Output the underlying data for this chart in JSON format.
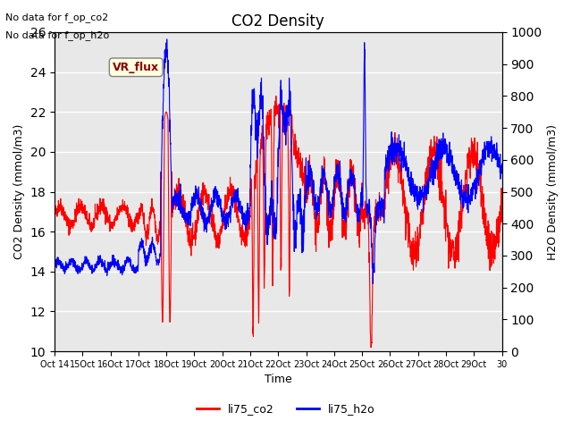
{
  "title": "CO2 Density",
  "xlabel": "Time",
  "ylabel_left": "CO2 Density (mmol/m3)",
  "ylabel_right": "H2O Density (mmol/m3)",
  "ylim_left": [
    10,
    26
  ],
  "ylim_right": [
    0,
    1000
  ],
  "yticks_left": [
    10,
    12,
    14,
    16,
    18,
    20,
    22,
    24,
    26
  ],
  "yticks_right": [
    0,
    100,
    200,
    300,
    400,
    500,
    600,
    700,
    800,
    900,
    1000
  ],
  "xtick_labels": [
    "Oct 14",
    "15Oct",
    "16Oct",
    "17Oct",
    "18Oct",
    "19Oct",
    "20Oct",
    "21Oct",
    "22Oct",
    "23Oct",
    "24Oct",
    "25Oct",
    "26Oct",
    "27Oct",
    "28Oct",
    "29Oct 30"
  ],
  "annotations": [
    "No data for f_op_co2",
    "No data for f_op_h2o"
  ],
  "annotation_box": "VR_flux",
  "legend_labels": [
    "li75_co2",
    "li75_h2o"
  ],
  "legend_colors": [
    "red",
    "blue"
  ],
  "co2_color": "red",
  "h2o_color": "blue",
  "bg_color": "#e8e8e8",
  "grid_color": "white"
}
